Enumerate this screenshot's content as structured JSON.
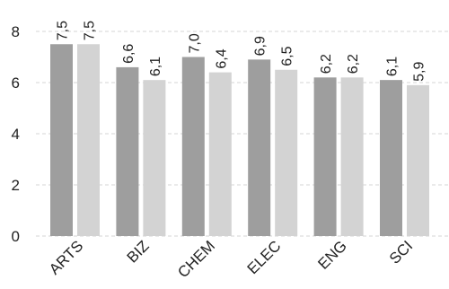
{
  "chart_data": {
    "type": "bar",
    "categories": [
      "ARTS",
      "BIZ",
      "CHEM",
      "ELEC",
      "ENG",
      "SCI"
    ],
    "series": [
      {
        "values": [
          7.5,
          6.6,
          7.0,
          6.9,
          6.2,
          6.1
        ],
        "color": "#9e9e9e"
      },
      {
        "values": [
          7.5,
          6.1,
          6.4,
          6.5,
          6.2,
          5.9
        ],
        "color": "#d3d3d3"
      }
    ],
    "data_labels": [
      [
        "7,5",
        "6,6",
        "7,0",
        "6,9",
        "6,2",
        "6,1"
      ],
      [
        "7,5",
        "6,1",
        "6,4",
        "6,5",
        "6,2",
        "5,9"
      ]
    ],
    "y_ticks": [
      0,
      2,
      4,
      6,
      8
    ],
    "y_tick_labels": [
      "0",
      "2",
      "4",
      "6",
      "8"
    ],
    "ylim": [
      0,
      8.5
    ],
    "grid": true,
    "legend": "none",
    "title": "",
    "xlabel": "",
    "ylabel": ""
  }
}
